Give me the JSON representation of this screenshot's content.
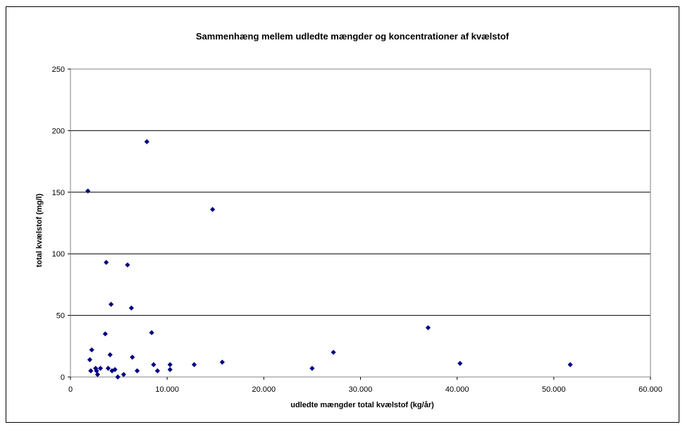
{
  "chart_data": {
    "type": "scatter",
    "title": "Sammenhæng mellem udledte mængder og koncentrationer af kvælstof",
    "xlabel": "udledte mængder total kvælstof (kg/år)",
    "ylabel": "total kvælstof (mg/l)",
    "xlim": [
      0,
      60000
    ],
    "ylim": [
      0,
      250
    ],
    "xticks": [
      0,
      10000,
      20000,
      30000,
      40000,
      50000,
      60000
    ],
    "xtick_labels": [
      "0",
      "10.000",
      "20.000",
      "30.000",
      "40.000",
      "50.000",
      "60.000"
    ],
    "yticks": [
      0,
      50,
      100,
      150,
      200,
      250
    ],
    "ytick_labels": [
      "0",
      "50",
      "100",
      "150",
      "200",
      "250"
    ],
    "grid": "horizontal",
    "legend": "none",
    "marker_color": "#000080",
    "points": [
      {
        "x": 1800,
        "y": 151
      },
      {
        "x": 2000,
        "y": 14
      },
      {
        "x": 2100,
        "y": 5
      },
      {
        "x": 2200,
        "y": 22
      },
      {
        "x": 2600,
        "y": 7
      },
      {
        "x": 2700,
        "y": 5
      },
      {
        "x": 2800,
        "y": 2
      },
      {
        "x": 3100,
        "y": 7
      },
      {
        "x": 3600,
        "y": 35
      },
      {
        "x": 3700,
        "y": 93
      },
      {
        "x": 3900,
        "y": 7
      },
      {
        "x": 4100,
        "y": 18
      },
      {
        "x": 4200,
        "y": 59
      },
      {
        "x": 4300,
        "y": 5
      },
      {
        "x": 4600,
        "y": 6
      },
      {
        "x": 4900,
        "y": 0
      },
      {
        "x": 5500,
        "y": 2
      },
      {
        "x": 5900,
        "y": 91
      },
      {
        "x": 6300,
        "y": 56
      },
      {
        "x": 6400,
        "y": 16
      },
      {
        "x": 6900,
        "y": 5
      },
      {
        "x": 7900,
        "y": 191
      },
      {
        "x": 8400,
        "y": 36
      },
      {
        "x": 8600,
        "y": 10
      },
      {
        "x": 9000,
        "y": 5
      },
      {
        "x": 10300,
        "y": 10
      },
      {
        "x": 10300,
        "y": 6
      },
      {
        "x": 12800,
        "y": 10
      },
      {
        "x": 14700,
        "y": 136
      },
      {
        "x": 15700,
        "y": 12
      },
      {
        "x": 25000,
        "y": 7
      },
      {
        "x": 27200,
        "y": 20
      },
      {
        "x": 37000,
        "y": 40
      },
      {
        "x": 40300,
        "y": 11
      },
      {
        "x": 51700,
        "y": 10
      }
    ]
  }
}
